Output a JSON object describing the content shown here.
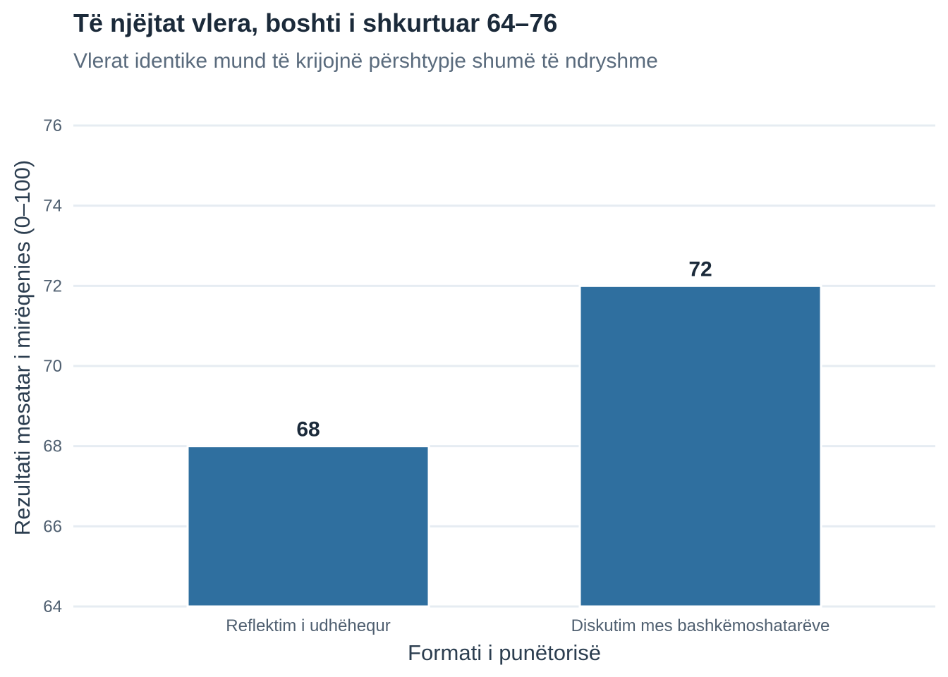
{
  "chart_data": {
    "type": "bar",
    "title": "Të njëjtat vlera, boshti i shkurtuar 64–76",
    "subtitle": "Vlerat identike mund të krijojnë përshtypje shumë të ndryshme",
    "xlabel": "Formati i punëtorisë",
    "ylabel": "Rezultati mesatar i mirëqenies (0–100)",
    "categories": [
      "Reflektim i udhëhequr",
      "Diskutim mes bashkëmoshatarëve"
    ],
    "values": [
      68,
      72
    ],
    "data_labels": [
      "68",
      "72"
    ],
    "ylim": [
      64,
      76
    ],
    "yticks": [
      64,
      66,
      68,
      70,
      72,
      74,
      76
    ],
    "grid": true,
    "legend": "none",
    "bar_color": "#2f6f9f",
    "grid_color": "#e6ecf2"
  }
}
